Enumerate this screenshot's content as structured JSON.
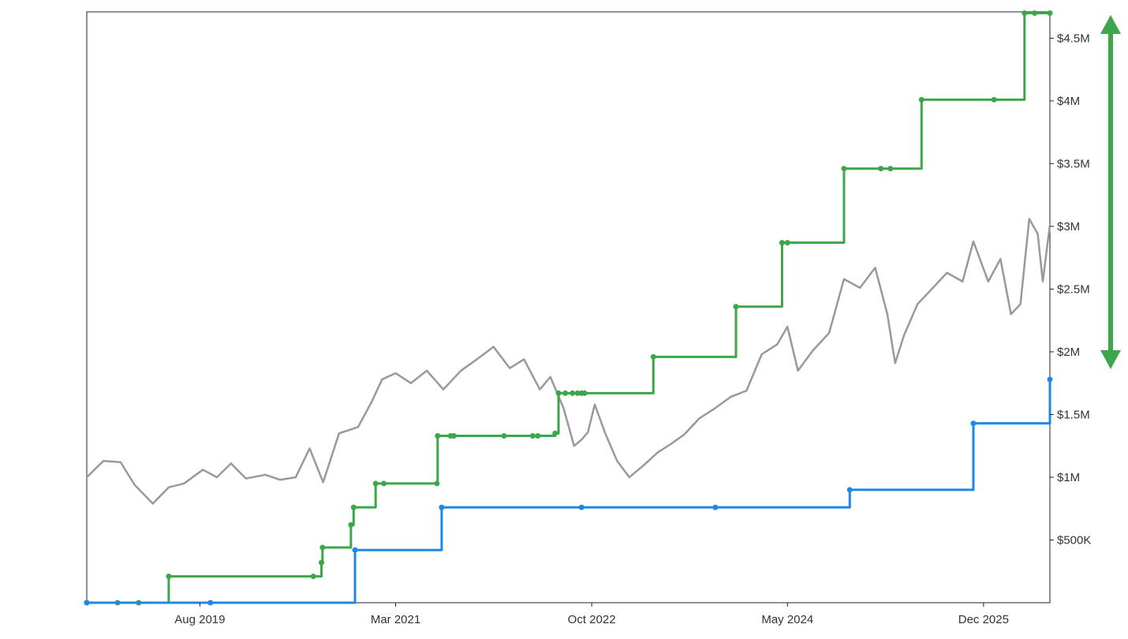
{
  "chart_data": {
    "type": "line",
    "title": "",
    "xlabel": "",
    "ylabel": "",
    "x_tick_labels": [
      "Aug 2019",
      "Mar 2021",
      "Oct 2022",
      "May 2024",
      "Dec 2025"
    ],
    "x_tick_dates": [
      "2019-08-01",
      "2021-03-01",
      "2022-10-01",
      "2024-05-01",
      "2025-12-01"
    ],
    "x_range": [
      "2018-09-01",
      "2026-06-15"
    ],
    "y_tick_labels": [
      "$500K",
      "$1M",
      "$1.5M",
      "$2M",
      "$2.5M",
      "$3M",
      "$3.5M",
      "$4M",
      "$4.5M"
    ],
    "y_tick_values": [
      500000,
      1000000,
      1500000,
      2000000,
      2500000,
      3000000,
      3500000,
      4000000,
      4500000
    ],
    "ylim": [
      0,
      4710000
    ],
    "y_axis_position": "right",
    "grid": false,
    "legend": "none",
    "range_indicator": {
      "from": 1950000,
      "to": 4710000,
      "color": "#3da64a"
    },
    "series": [
      {
        "style": "line",
        "color": "#999999",
        "points": [
          [
            "2018-09-01",
            1000000
          ],
          [
            "2018-10-20",
            1130000
          ],
          [
            "2018-12-10",
            1120000
          ],
          [
            "2019-01-20",
            940000
          ],
          [
            "2019-03-15",
            790000
          ],
          [
            "2019-05-01",
            920000
          ],
          [
            "2019-06-15",
            950000
          ],
          [
            "2019-08-10",
            1060000
          ],
          [
            "2019-09-20",
            1000000
          ],
          [
            "2019-11-01",
            1110000
          ],
          [
            "2019-12-15",
            990000
          ],
          [
            "2020-02-10",
            1020000
          ],
          [
            "2020-03-25",
            980000
          ],
          [
            "2020-05-10",
            1000000
          ],
          [
            "2020-06-20",
            1230000
          ],
          [
            "2020-07-30",
            960000
          ],
          [
            "2020-09-15",
            1350000
          ],
          [
            "2020-11-10",
            1400000
          ],
          [
            "2020-12-20",
            1600000
          ],
          [
            "2021-01-20",
            1780000
          ],
          [
            "2021-03-01",
            1830000
          ],
          [
            "2021-04-15",
            1750000
          ],
          [
            "2021-06-01",
            1850000
          ],
          [
            "2021-07-20",
            1700000
          ],
          [
            "2021-09-10",
            1850000
          ],
          [
            "2021-11-01",
            1950000
          ],
          [
            "2021-12-15",
            2040000
          ],
          [
            "2022-02-01",
            1870000
          ],
          [
            "2022-03-15",
            1940000
          ],
          [
            "2022-05-01",
            1700000
          ],
          [
            "2022-06-01",
            1800000
          ],
          [
            "2022-07-10",
            1550000
          ],
          [
            "2022-08-10",
            1250000
          ],
          [
            "2022-09-01",
            1300000
          ],
          [
            "2022-09-20",
            1360000
          ],
          [
            "2022-10-10",
            1580000
          ],
          [
            "2022-11-10",
            1350000
          ],
          [
            "2022-12-15",
            1130000
          ],
          [
            "2023-01-20",
            1000000
          ],
          [
            "2023-03-01",
            1090000
          ],
          [
            "2023-04-15",
            1200000
          ],
          [
            "2023-05-20",
            1260000
          ],
          [
            "2023-07-01",
            1340000
          ],
          [
            "2023-08-15",
            1470000
          ],
          [
            "2023-09-30",
            1550000
          ],
          [
            "2023-11-15",
            1640000
          ],
          [
            "2024-01-01",
            1690000
          ],
          [
            "2024-02-15",
            1980000
          ],
          [
            "2024-04-01",
            2060000
          ],
          [
            "2024-05-01",
            2200000
          ],
          [
            "2024-06-01",
            1850000
          ],
          [
            "2024-07-15",
            2010000
          ],
          [
            "2024-09-01",
            2150000
          ],
          [
            "2024-10-15",
            2580000
          ],
          [
            "2024-12-01",
            2510000
          ],
          [
            "2025-01-15",
            2670000
          ],
          [
            "2025-02-20",
            2300000
          ],
          [
            "2025-03-15",
            1910000
          ],
          [
            "2025-04-10",
            2130000
          ],
          [
            "2025-05-20",
            2380000
          ],
          [
            "2025-07-01",
            2500000
          ],
          [
            "2025-08-15",
            2630000
          ],
          [
            "2025-09-30",
            2560000
          ],
          [
            "2025-11-01",
            2880000
          ],
          [
            "2025-12-15",
            2560000
          ],
          [
            "2026-01-20",
            2740000
          ],
          [
            "2026-02-20",
            2300000
          ],
          [
            "2026-03-20",
            2380000
          ],
          [
            "2026-04-15",
            3060000
          ],
          [
            "2026-05-10",
            2940000
          ],
          [
            "2026-05-25",
            2560000
          ],
          [
            "2026-06-05",
            2800000
          ],
          [
            "2026-06-15",
            3010000
          ]
        ]
      },
      {
        "style": "step",
        "color": "#3da64a",
        "points": [
          [
            "2018-09-01",
            0
          ],
          [
            "2018-12-01",
            0
          ],
          [
            "2019-02-01",
            0
          ],
          [
            "2019-05-01",
            210000
          ],
          [
            "2020-07-01",
            210000
          ],
          [
            "2020-07-25",
            320000
          ],
          [
            "2020-07-28",
            440000
          ],
          [
            "2020-10-20",
            620000
          ],
          [
            "2020-10-28",
            760000
          ],
          [
            "2021-01-01",
            950000
          ],
          [
            "2021-01-25",
            950000
          ],
          [
            "2021-07-01",
            950000
          ],
          [
            "2021-07-03",
            1330000
          ],
          [
            "2021-08-10",
            1330000
          ],
          [
            "2021-08-20",
            1330000
          ],
          [
            "2022-01-15",
            1330000
          ],
          [
            "2022-04-10",
            1330000
          ],
          [
            "2022-04-25",
            1330000
          ],
          [
            "2022-06-15",
            1350000
          ],
          [
            "2022-06-25",
            1670000
          ],
          [
            "2022-07-15",
            1670000
          ],
          [
            "2022-08-05",
            1670000
          ],
          [
            "2022-08-20",
            1670000
          ],
          [
            "2022-09-01",
            1670000
          ],
          [
            "2022-09-10",
            1670000
          ],
          [
            "2023-04-01",
            1960000
          ],
          [
            "2023-12-01",
            2360000
          ],
          [
            "2024-04-15",
            2870000
          ],
          [
            "2024-05-01",
            2870000
          ],
          [
            "2024-10-15",
            3460000
          ],
          [
            "2025-02-01",
            3460000
          ],
          [
            "2025-03-01",
            3460000
          ],
          [
            "2025-06-01",
            4010000
          ],
          [
            "2026-01-01",
            4010000
          ],
          [
            "2026-04-01",
            4700000
          ],
          [
            "2026-05-01",
            4700000
          ],
          [
            "2026-06-15",
            4700000
          ]
        ]
      },
      {
        "style": "step",
        "color": "#1f87e5",
        "points": [
          [
            "2018-09-01",
            0
          ],
          [
            "2019-09-01",
            0
          ],
          [
            "2020-11-01",
            420000
          ],
          [
            "2021-07-15",
            760000
          ],
          [
            "2022-09-01",
            760000
          ],
          [
            "2023-10-01",
            760000
          ],
          [
            "2024-11-01",
            900000
          ],
          [
            "2025-11-01",
            1430000
          ],
          [
            "2026-06-15",
            1780000
          ]
        ]
      }
    ]
  }
}
